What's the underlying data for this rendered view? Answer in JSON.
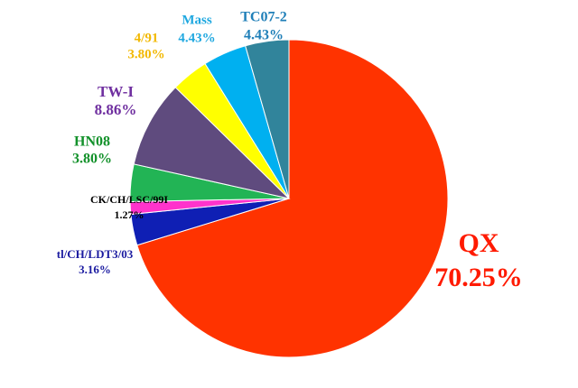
{
  "chart_data": {
    "type": "pie",
    "categories": [
      "QX",
      "tl/CH/LDT3/03",
      "CK/CH/LSC/99I",
      "HN08",
      "TW-I",
      "4/91",
      "Mass",
      "TC07-2"
    ],
    "values": [
      70.25,
      3.16,
      1.27,
      3.8,
      8.86,
      3.8,
      4.43,
      4.43
    ],
    "value_labels": [
      "70.25%",
      "3.16%",
      "1.27%",
      "3.80%",
      "8.86%",
      "3.80%",
      "4.43%",
      "4.43%"
    ],
    "colors": [
      "#ff3300",
      "#0f1fb4",
      "#ff33cc",
      "#22b455",
      "#5f4b7e",
      "#ffff00",
      "#00b0f0",
      "#31849b"
    ],
    "label_colors": [
      "#ff1a00",
      "#1a1aa0",
      "#000000",
      "#12912a",
      "#7030a0",
      "#f2b800",
      "#1fa8e0",
      "#1f7fb8"
    ]
  }
}
